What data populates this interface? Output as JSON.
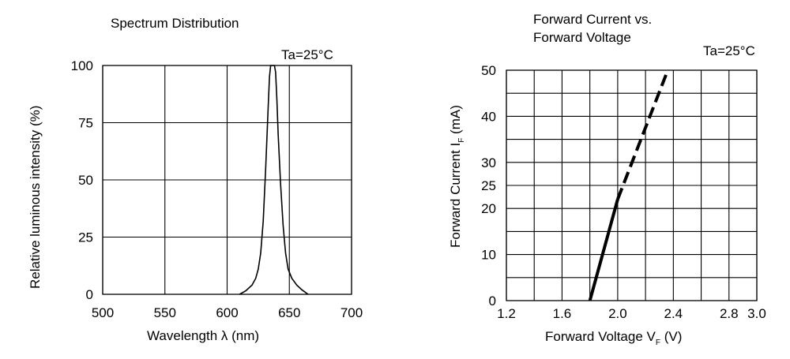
{
  "chart_data": [
    {
      "type": "line",
      "title": "Spectrum Distribution",
      "annotation": "Ta=25°C",
      "xlabel": "Wavelength  λ (nm)",
      "ylabel": "Relative luminous intensity (%)",
      "xlim": [
        500,
        700
      ],
      "ylim": [
        0,
        100
      ],
      "x_ticks": [
        500,
        550,
        600,
        650,
        700
      ],
      "y_ticks": [
        0,
        25,
        50,
        75,
        100
      ],
      "grid": true,
      "series": [
        {
          "x": [
            610,
            615,
            620,
            623,
            625,
            627,
            629,
            631,
            633,
            634,
            635,
            636,
            637,
            638,
            639,
            640,
            641,
            643,
            645,
            647,
            649,
            652,
            656,
            660,
            665
          ],
          "values": [
            0,
            1.5,
            4,
            7,
            11,
            18,
            32,
            55,
            82,
            95,
            100,
            100,
            100,
            100,
            97,
            85,
            70,
            48,
            30,
            18,
            11,
            7,
            4,
            2,
            0
          ]
        }
      ]
    },
    {
      "type": "line",
      "title_lines": [
        "Forward Current vs.",
        "Forward Voltage"
      ],
      "annotation": "Ta=25°C",
      "xlabel_main": "Forward Voltage  V",
      "xlabel_sub": "F",
      "xlabel_unit": " (V)",
      "ylabel_main": "Forward Current  I",
      "ylabel_sub": "F",
      "ylabel_unit": "  (mA)",
      "xlim": [
        1.2,
        3.0
      ],
      "ylim": [
        0,
        50
      ],
      "x_tick_labels": [
        "1.2",
        "1.6",
        "2.0",
        "2.4",
        "2.8",
        "3.0"
      ],
      "y_tick_labels": [
        {
          "value": 0,
          "label": "0"
        },
        {
          "value": 10,
          "label": "10"
        },
        {
          "value": 20,
          "label": "20"
        },
        {
          "value": 25,
          "label": "25"
        },
        {
          "value": 30,
          "label": "30"
        },
        {
          "value": 40,
          "label": "40"
        },
        {
          "value": 50,
          "label": "50"
        }
      ],
      "grid": true,
      "series": [
        {
          "style": "solid",
          "x": [
            1.8,
            2.0
          ],
          "values": [
            0,
            22
          ]
        },
        {
          "style": "dashed",
          "x": [
            2.0,
            2.36
          ],
          "values": [
            22,
            50
          ]
        }
      ]
    }
  ]
}
